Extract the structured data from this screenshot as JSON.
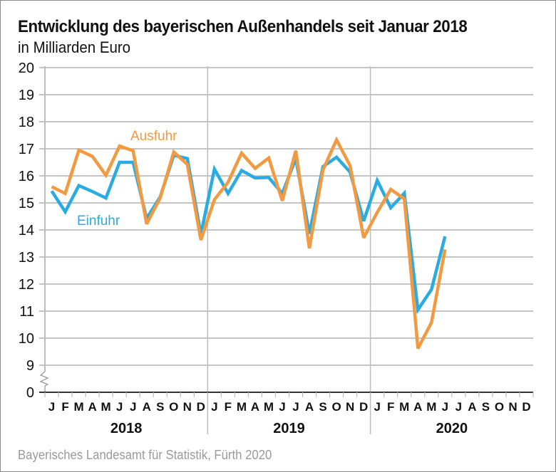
{
  "header": {
    "title": "Entwicklung des bayerischen Außenhandels seit Januar 2018",
    "subtitle": "in Milliarden Euro"
  },
  "footer": {
    "source": "Bayerisches Landesamt für Statistik, Fürth 2020"
  },
  "chart_data": {
    "type": "line",
    "title": "Entwicklung des bayerischen Außenhandels seit Januar 2018",
    "subtitle": "in Milliarden Euro",
    "xlabel": "",
    "ylabel": "",
    "ylim": [
      9,
      20
    ],
    "y_axis_break": true,
    "y_ticks": [
      "0",
      "9",
      "10",
      "11",
      "12",
      "13",
      "14",
      "15",
      "16",
      "17",
      "18",
      "19",
      "20"
    ],
    "y_tick_values": [
      9,
      10,
      11,
      12,
      13,
      14,
      15,
      16,
      17,
      18,
      19,
      20
    ],
    "grid": true,
    "years": [
      "2018",
      "2019",
      "2020"
    ],
    "month_labels": [
      "J",
      "F",
      "M",
      "A",
      "M",
      "J",
      "J",
      "A",
      "S",
      "O",
      "N",
      "D"
    ],
    "x_months_total": 36,
    "series": [
      {
        "name": "Ausfuhr",
        "color": "#F39A40",
        "values": [
          15.6,
          15.35,
          16.95,
          16.72,
          16.02,
          17.1,
          16.93,
          14.22,
          15.18,
          16.88,
          16.42,
          13.63,
          15.12,
          15.76,
          16.84,
          16.28,
          16.66,
          15.08,
          16.93,
          13.32,
          16.22,
          17.33,
          16.38,
          13.71,
          14.65,
          15.5,
          15.15,
          9.62,
          10.58,
          13.28
        ]
      },
      {
        "name": "Einfuhr",
        "color": "#2AACE2",
        "values": [
          15.44,
          14.67,
          15.64,
          15.42,
          15.18,
          16.5,
          16.5,
          14.42,
          15.22,
          16.76,
          16.64,
          13.84,
          16.25,
          15.35,
          16.2,
          15.92,
          15.94,
          15.35,
          16.64,
          13.86,
          16.34,
          16.69,
          16.14,
          14.33,
          15.83,
          14.82,
          15.36,
          11.05,
          11.8,
          13.76
        ]
      }
    ],
    "legend": "inline-labels"
  }
}
